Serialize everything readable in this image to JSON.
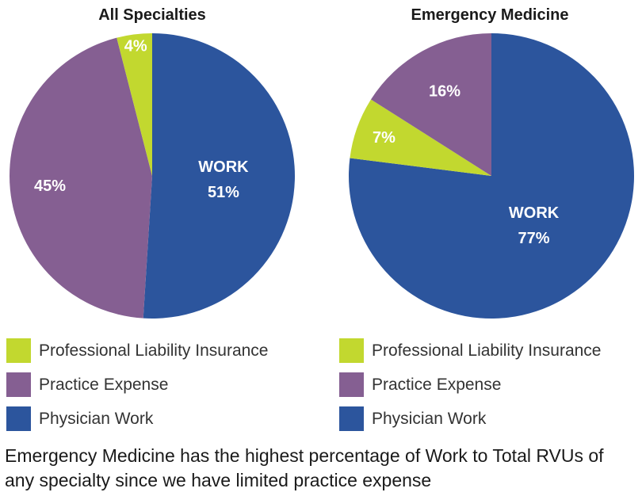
{
  "colors": {
    "liability": "#c2d82f",
    "practice": "#855f92",
    "work": "#2c559d"
  },
  "chart_data": [
    {
      "type": "pie",
      "title": "All Specialties",
      "slices": [
        {
          "name": "Physician Work",
          "value": 51,
          "label_title": "WORK",
          "label_value": "51%",
          "color": "#2c559d"
        },
        {
          "name": "Practice Expense",
          "value": 45,
          "label_title": "",
          "label_value": "45%",
          "color": "#855f92"
        },
        {
          "name": "Professional Liability Insurance",
          "value": 4,
          "label_title": "",
          "label_value": "4%",
          "color": "#c2d82f"
        }
      ],
      "legend": [
        {
          "label": "Professional Liability Insurance",
          "color": "#c2d82f"
        },
        {
          "label": "Practice Expense",
          "color": "#855f92"
        },
        {
          "label": "Physician Work",
          "color": "#2c559d"
        }
      ]
    },
    {
      "type": "pie",
      "title": "Emergency Medicine",
      "slices": [
        {
          "name": "Physician Work",
          "value": 77,
          "label_title": "WORK",
          "label_value": "77%",
          "color": "#2c559d"
        },
        {
          "name": "Professional Liability Insurance",
          "value": 7,
          "label_title": "",
          "label_value": "7%",
          "color": "#c2d82f"
        },
        {
          "name": "Practice Expense",
          "value": 16,
          "label_title": "",
          "label_value": "16%",
          "color": "#855f92"
        }
      ],
      "legend": [
        {
          "label": "Professional Liability Insurance",
          "color": "#c2d82f"
        },
        {
          "label": "Practice Expense",
          "color": "#855f92"
        },
        {
          "label": "Physician Work",
          "color": "#2c559d"
        }
      ]
    }
  ],
  "caption": "Emergency Medicine has the highest percentage of Work to Total RVUs of any specialty since we have limited practice expense"
}
